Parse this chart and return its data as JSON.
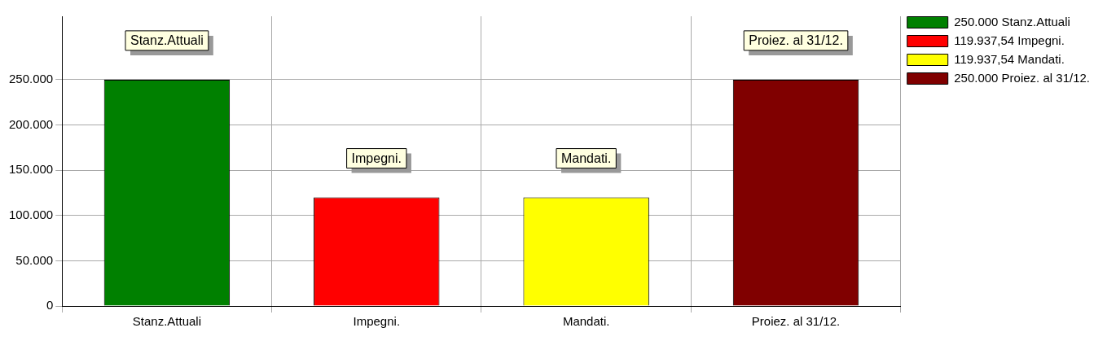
{
  "chart_data": {
    "type": "bar",
    "categories": [
      "Stanz.Attuali",
      "Impegni.",
      "Mandati.",
      "Proiez. al 31/12."
    ],
    "series": [
      {
        "name": "250.000 Stanz.Attuali",
        "color": "#008000",
        "values": [
          250000,
          null,
          null,
          null
        ]
      },
      {
        "name": "119.937,54 Impegni.",
        "color": "#ff0000",
        "values": [
          null,
          119937.54,
          null,
          null
        ]
      },
      {
        "name": "119.937,54 Mandati.",
        "color": "#ffff00",
        "values": [
          null,
          null,
          119937.54,
          null
        ]
      },
      {
        "name": "250.000 Proiez. al 31/12.",
        "color": "#800000",
        "values": [
          null,
          null,
          null,
          250000
        ]
      }
    ],
    "ylim": [
      0,
      320000
    ],
    "yticks": [
      {
        "value": 0,
        "label": "0"
      },
      {
        "value": 50000,
        "label": "50.000"
      },
      {
        "value": 100000,
        "label": "100.000"
      },
      {
        "value": 150000,
        "label": "150.000"
      },
      {
        "value": 200000,
        "label": "200.000"
      },
      {
        "value": 250000,
        "label": "250.000"
      }
    ],
    "grid": true,
    "legend": "top right",
    "annotations": [
      {
        "text": "Stanz.Attuali",
        "x": "Stanz.Attuali",
        "y": 250000
      },
      {
        "text": "Impegni.",
        "x": "Impegni.",
        "y": 119937.54
      },
      {
        "text": "Mandati.",
        "x": "Mandati.",
        "y": 119937.54
      },
      {
        "text": "Proiez. al 31/12.",
        "x": "Proiez. al 31/12.",
        "y": 250000
      }
    ]
  }
}
